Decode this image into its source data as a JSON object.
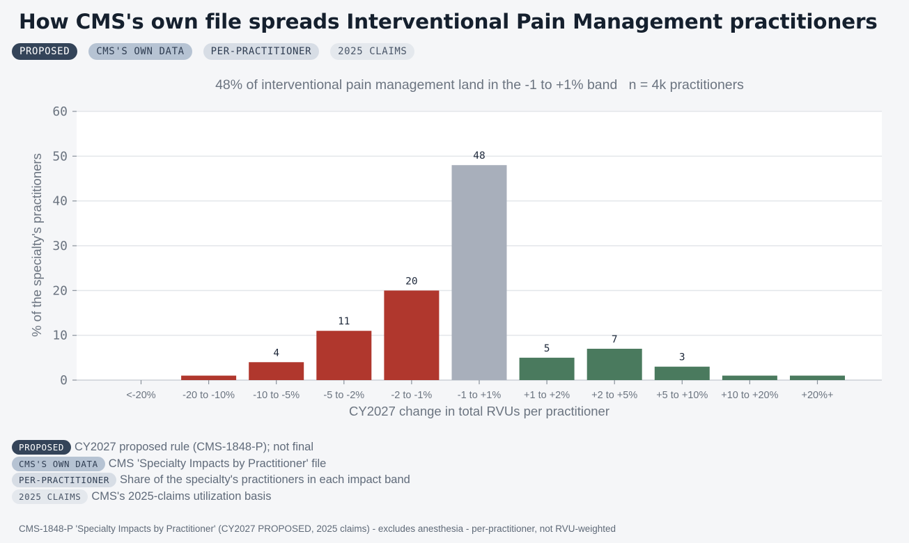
{
  "title": "How CMS's own file spreads Interventional Pain Management practitioners",
  "tags": [
    "PROPOSED",
    "CMS'S OWN DATA",
    "PER-PRACTITIONER",
    "2025 CLAIMS"
  ],
  "legend": [
    {
      "tag": "PROPOSED",
      "text": "CY2027 proposed rule (CMS-1848-P); not final"
    },
    {
      "tag": "CMS'S OWN DATA",
      "text": "CMS 'Specialty Impacts by Practitioner' file"
    },
    {
      "tag": "PER-PRACTITIONER",
      "text": "Share of the specialty's practitioners in each impact band"
    },
    {
      "tag": "2025 CLAIMS",
      "text": "CMS's 2025-claims utilization basis"
    }
  ],
  "footnote": "CMS-1848-P 'Specialty Impacts by Practitioner' (CY2027 PROPOSED, 2025 claims) - excludes anesthesia - per-practitioner, not RVU-weighted",
  "colors": {
    "loss": "#b0372d",
    "neutral": "#a8afbb",
    "gain": "#4a7a5e",
    "grid": "#e3e6ea",
    "axis_text": "#6b7480"
  },
  "chart_data": {
    "type": "bar",
    "subtitle": "48% of interventional pain management land in the -1 to +1% band   n = 4k practitioners",
    "xlabel": "CY2027 change in total RVUs per practitioner",
    "ylabel": "% of the specialty's practitioners",
    "ylim": [
      0,
      60
    ],
    "yticks": [
      0,
      10,
      20,
      30,
      40,
      50,
      60
    ],
    "grid": true,
    "categories": [
      "<-20%",
      "-20 to -10%",
      "-10 to -5%",
      "-5 to -2%",
      "-2 to -1%",
      "-1 to +1%",
      "+1 to +2%",
      "+2 to +5%",
      "+5 to +10%",
      "+10 to +20%",
      "+20%+"
    ],
    "values": [
      0,
      1,
      4,
      11,
      20,
      48,
      5,
      7,
      3,
      1,
      1
    ],
    "data_labels": [
      "",
      "",
      "4",
      "11",
      "20",
      "48",
      "5",
      "7",
      "3",
      "",
      ""
    ],
    "bar_kinds": [
      "loss",
      "loss",
      "loss",
      "loss",
      "loss",
      "neutral",
      "gain",
      "gain",
      "gain",
      "gain",
      "gain"
    ]
  }
}
